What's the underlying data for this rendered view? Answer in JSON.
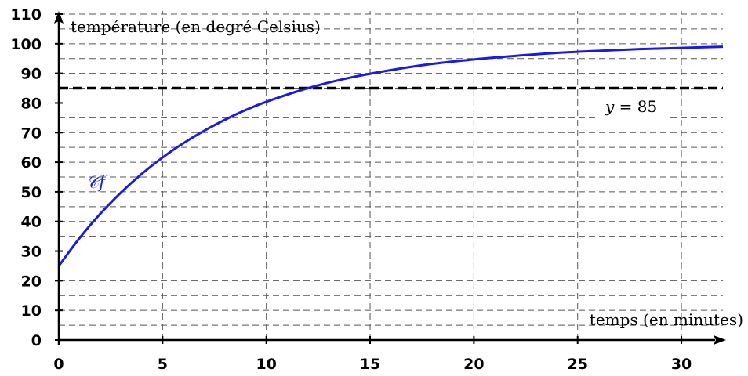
{
  "chart_data": {
    "type": "line",
    "xlabel": "temps (en minutes)",
    "ylabel": "température (en degré Celsius)",
    "xlim": [
      0,
      32
    ],
    "ylim": [
      0,
      110
    ],
    "x_ticks": [
      "0",
      "5",
      "10",
      "15",
      "20",
      "25",
      "30"
    ],
    "y_ticks": [
      "0",
      "10",
      "20",
      "30",
      "40",
      "50",
      "60",
      "70",
      "80",
      "90",
      "100",
      "110"
    ],
    "grid": true,
    "series": [
      {
        "name": "𝒞f",
        "color": "#1a1ae6",
        "x": [
          0,
          1,
          2,
          3,
          4,
          5,
          6,
          7,
          8,
          9,
          10,
          12,
          14,
          16,
          18,
          20,
          22,
          24,
          26,
          28,
          30,
          32
        ],
        "y": [
          25,
          34.4,
          42.6,
          49.8,
          56.1,
          61.6,
          66.4,
          70.6,
          74.3,
          77.6,
          80.4,
          85.0,
          88.5,
          91.1,
          93.2,
          94.7,
          95.9,
          96.9,
          97.6,
          98.2,
          98.6,
          99.0
        ]
      }
    ],
    "reference_lines": [
      {
        "label_var": "y",
        "label_rest": " = 85",
        "y": 85,
        "style": "dashed",
        "color": "#000000"
      }
    ]
  }
}
